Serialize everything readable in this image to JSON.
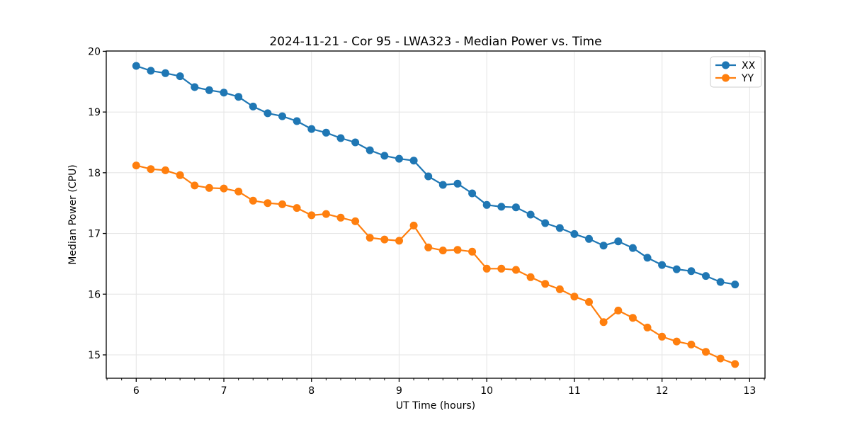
{
  "figure": {
    "background": "#ffffff",
    "text_color": "#000000",
    "grid_color": "#e6e6e6",
    "spine_color": "#000000",
    "legend": {
      "border_color": "#cccccc",
      "background": "#ffffff"
    }
  },
  "chart_data": {
    "type": "line",
    "title": "2024-11-21 - Cor 95 - LWA323 - Median Power vs. Time",
    "xlabel": "UT Time (hours)",
    "ylabel": "Median Power (CPU)",
    "xlim": [
      5.658,
      13.175
    ],
    "ylim": [
      14.615,
      20.005
    ],
    "xticks": [
      6,
      7,
      8,
      9,
      10,
      11,
      12,
      13
    ],
    "yticks": [
      15,
      16,
      17,
      18,
      19,
      20
    ],
    "x_minor_step": 0.166667,
    "grid": true,
    "legend_position": "upper right",
    "x": [
      6.0,
      6.1667,
      6.3333,
      6.5,
      6.6667,
      6.8333,
      7.0,
      7.1667,
      7.3333,
      7.5,
      7.6667,
      7.8333,
      8.0,
      8.1667,
      8.3333,
      8.5,
      8.6667,
      8.8333,
      9.0,
      9.1667,
      9.3333,
      9.5,
      9.6667,
      9.8333,
      10.0,
      10.1667,
      10.3333,
      10.5,
      10.6667,
      10.8333,
      11.0,
      11.1667,
      11.3333,
      11.5,
      11.6667,
      11.8333,
      12.0,
      12.1667,
      12.3333,
      12.5,
      12.6667,
      12.8333
    ],
    "series": [
      {
        "name": "XX",
        "color": "#1f77b4",
        "values": [
          19.76,
          19.68,
          19.64,
          19.59,
          19.41,
          19.36,
          19.32,
          19.25,
          19.09,
          18.98,
          18.93,
          18.85,
          18.72,
          18.66,
          18.57,
          18.5,
          18.37,
          18.28,
          18.23,
          18.2,
          17.94,
          17.8,
          17.82,
          17.66,
          17.47,
          17.44,
          17.43,
          17.31,
          17.17,
          17.09,
          16.99,
          16.91,
          16.8,
          16.87,
          16.76,
          16.6,
          16.48,
          16.41,
          16.38,
          16.3,
          16.2,
          16.16
        ]
      },
      {
        "name": "YY",
        "color": "#ff7f0e",
        "values": [
          18.12,
          18.06,
          18.04,
          17.96,
          17.79,
          17.75,
          17.74,
          17.69,
          17.54,
          17.5,
          17.48,
          17.42,
          17.3,
          17.32,
          17.26,
          17.2,
          16.93,
          16.9,
          16.88,
          17.13,
          16.77,
          16.72,
          16.73,
          16.7,
          16.42,
          16.42,
          16.4,
          16.28,
          16.17,
          16.08,
          15.96,
          15.87,
          15.54,
          15.73,
          15.61,
          15.45,
          15.3,
          15.22,
          15.17,
          15.05,
          14.94,
          14.85
        ]
      }
    ]
  }
}
